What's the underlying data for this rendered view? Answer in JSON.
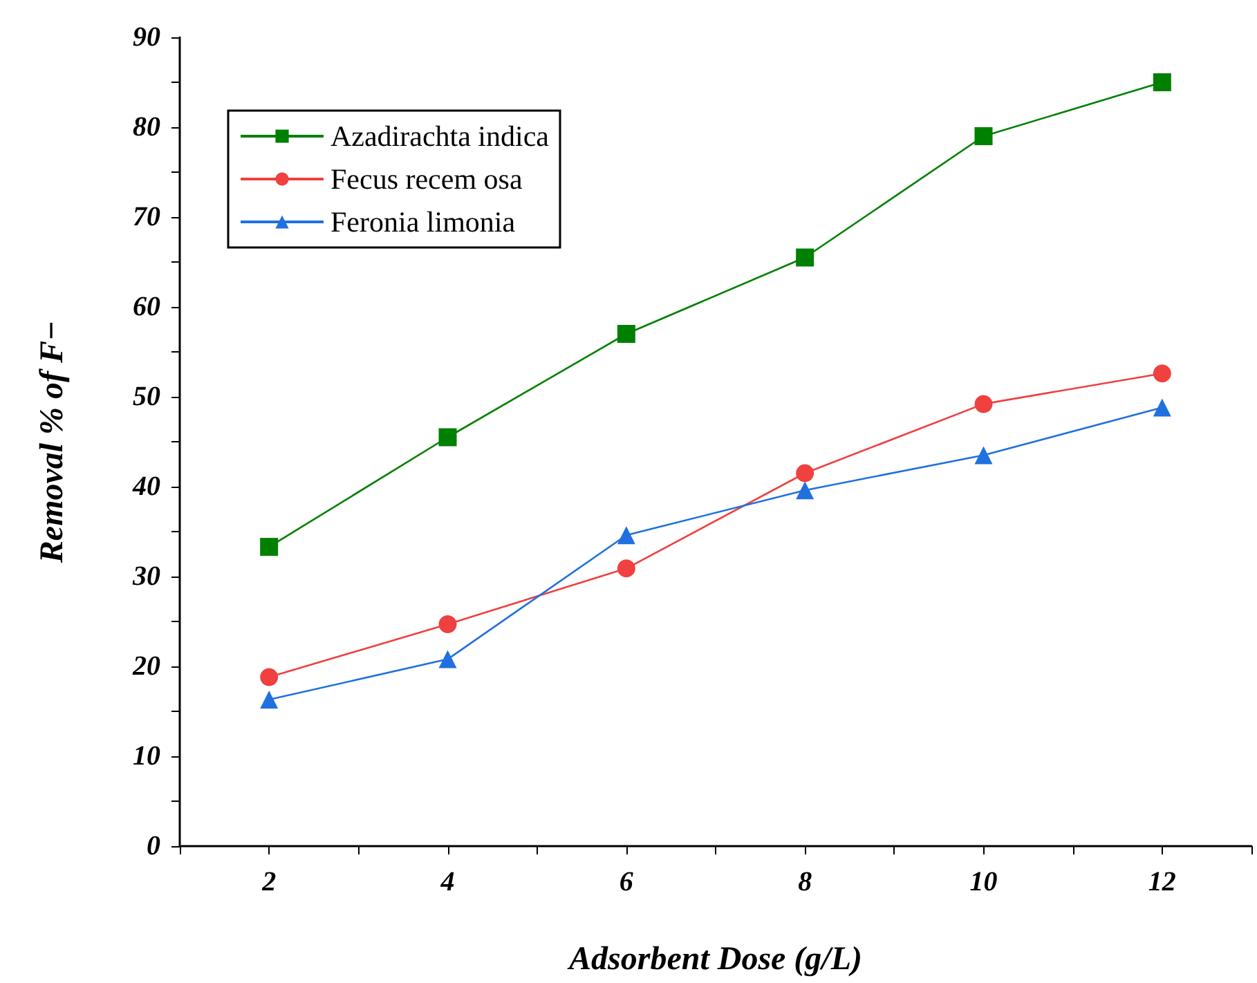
{
  "chart_data": {
    "type": "line",
    "xlabel": "Adsorbent Dose (g/L)",
    "ylabel": "Removal % of F−",
    "x": [
      2,
      4,
      6,
      8,
      10,
      12
    ],
    "series": [
      {
        "name": "Azadirachta indica",
        "color": "#008000",
        "marker": "square",
        "values": [
          33.3,
          45.5,
          57,
          65.5,
          79,
          85
        ]
      },
      {
        "name": "Fecus recem osa",
        "color": "#f04040",
        "marker": "circle",
        "values": [
          18.8,
          24.7,
          30.9,
          41.5,
          49.2,
          52.6
        ]
      },
      {
        "name": "Feronia limonia",
        "color": "#2070e0",
        "marker": "triangle",
        "values": [
          16.3,
          20.8,
          34.6,
          39.6,
          43.5,
          48.8
        ]
      }
    ],
    "xlim": [
      1,
      13
    ],
    "xticks": [
      {
        "value": 1,
        "label": null
      },
      2,
      {
        "value": 3,
        "label": null
      },
      4,
      {
        "value": 5,
        "label": null
      },
      6,
      {
        "value": 7,
        "label": null
      },
      8,
      {
        "value": 9,
        "label": null
      },
      10,
      {
        "value": 11,
        "label": null
      },
      12,
      {
        "value": 13,
        "label": null
      }
    ],
    "ylim": [
      0,
      90
    ],
    "yticks": [
      0,
      {
        "value": 5,
        "label": null
      },
      10,
      {
        "value": 15,
        "label": null
      },
      20,
      {
        "value": 25,
        "label": null
      },
      30,
      {
        "value": 35,
        "label": null
      },
      40,
      {
        "value": 45,
        "label": null
      },
      50,
      {
        "value": 55,
        "label": null
      },
      60,
      {
        "value": 65,
        "label": null
      },
      70,
      {
        "value": 75,
        "label": null
      },
      80,
      {
        "value": 85,
        "label": null
      },
      90
    ],
    "grid": false,
    "legend": "top left",
    "line_style": "solid"
  }
}
